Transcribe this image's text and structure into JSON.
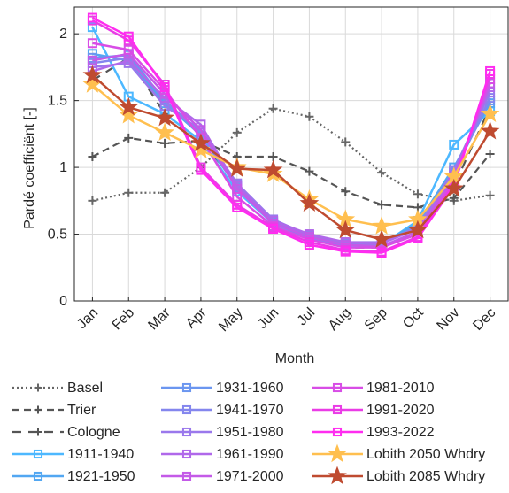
{
  "chart_data": {
    "type": "line",
    "xlabel": "Month",
    "ylabel": "Pardé coefficiënt [-]",
    "categories": [
      "Jan",
      "Feb",
      "Mar",
      "Apr",
      "May",
      "Jun",
      "Jul",
      "Aug",
      "Sep",
      "Oct",
      "Nov",
      "Dec"
    ],
    "ylim": [
      0,
      2.2
    ],
    "yticks": [
      "0",
      "0.5",
      "1",
      "1.5",
      "2"
    ],
    "grid": true,
    "legend_position": "bottom",
    "series": [
      {
        "name": "Basel",
        "color": "#666666",
        "dash": "dotted",
        "marker": "plus",
        "values": [
          0.75,
          0.81,
          0.81,
          1.0,
          1.26,
          1.44,
          1.38,
          1.19,
          0.96,
          0.8,
          0.75,
          0.79
        ]
      },
      {
        "name": "Trier",
        "color": "#555555",
        "dash": "dashed",
        "marker": "plus",
        "values": [
          1.08,
          1.22,
          1.18,
          1.2,
          1.08,
          1.08,
          0.97,
          0.82,
          0.72,
          0.7,
          0.77,
          1.1
        ]
      },
      {
        "name": "Cologne",
        "color": "#555555",
        "dash": "longdash",
        "marker": "plus",
        "values": [
          1.65,
          1.82,
          1.4,
          1.2,
          0.88,
          0.58,
          0.47,
          0.4,
          0.4,
          0.52,
          0.86,
          1.45
        ]
      },
      {
        "name": "1911-1940",
        "color": "#4db8ff",
        "dash": "solid",
        "marker": "square",
        "values": [
          2.05,
          1.53,
          1.4,
          1.2,
          0.82,
          0.58,
          0.46,
          0.41,
          0.42,
          0.6,
          1.17,
          1.42
        ]
      },
      {
        "name": "1921-1950",
        "color": "#52a7f2",
        "dash": "solid",
        "marker": "square",
        "values": [
          1.85,
          1.8,
          1.48,
          1.24,
          0.85,
          0.59,
          0.46,
          0.42,
          0.43,
          0.58,
          1.0,
          1.48
        ]
      },
      {
        "name": "1931-1960",
        "color": "#6b96f0",
        "dash": "solid",
        "marker": "square",
        "values": [
          1.82,
          1.84,
          1.5,
          1.24,
          0.86,
          0.59,
          0.47,
          0.42,
          0.43,
          0.56,
          0.97,
          1.5
        ]
      },
      {
        "name": "1941-1970",
        "color": "#8486ee",
        "dash": "solid",
        "marker": "square",
        "values": [
          1.78,
          1.82,
          1.5,
          1.26,
          0.87,
          0.6,
          0.48,
          0.43,
          0.43,
          0.55,
          0.96,
          1.52
        ]
      },
      {
        "name": "1951-1980",
        "color": "#9a78ec",
        "dash": "solid",
        "marker": "square",
        "values": [
          1.75,
          1.78,
          1.46,
          1.28,
          0.88,
          0.61,
          0.49,
          0.44,
          0.44,
          0.55,
          0.98,
          1.56
        ]
      },
      {
        "name": "1961-1990",
        "color": "#b068ea",
        "dash": "solid",
        "marker": "square",
        "values": [
          1.72,
          1.8,
          1.52,
          1.32,
          0.86,
          0.6,
          0.5,
          0.44,
          0.43,
          0.54,
          0.94,
          1.6
        ]
      },
      {
        "name": "1971-2000",
        "color": "#c45ae8",
        "dash": "solid",
        "marker": "square",
        "values": [
          1.8,
          1.85,
          1.55,
          1.28,
          0.84,
          0.58,
          0.48,
          0.42,
          0.41,
          0.52,
          0.92,
          1.63
        ]
      },
      {
        "name": "1981-2010",
        "color": "#d84de6",
        "dash": "solid",
        "marker": "square",
        "values": [
          1.93,
          1.88,
          1.58,
          1.22,
          0.78,
          0.56,
          0.46,
          0.4,
          0.4,
          0.5,
          0.9,
          1.66
        ]
      },
      {
        "name": "1991-2020",
        "color": "#ea3ce6",
        "dash": "solid",
        "marker": "square",
        "values": [
          2.1,
          1.95,
          1.62,
          1.0,
          0.72,
          0.55,
          0.44,
          0.38,
          0.37,
          0.48,
          0.88,
          1.7
        ]
      },
      {
        "name": "1993-2022",
        "color": "#ff2cf0",
        "dash": "solid",
        "marker": "square",
        "values": [
          2.12,
          1.98,
          1.6,
          0.98,
          0.7,
          0.54,
          0.42,
          0.37,
          0.36,
          0.47,
          0.86,
          1.72
        ]
      },
      {
        "name": "Lobith 2050 Whdry",
        "color": "#ffbf4f",
        "dash": "solid",
        "marker": "star",
        "values": [
          1.62,
          1.39,
          1.26,
          1.13,
          1.0,
          0.95,
          0.76,
          0.61,
          0.56,
          0.61,
          0.93,
          1.4
        ]
      },
      {
        "name": "Lobith 2085 Whdry",
        "color": "#bf4b30",
        "dash": "solid",
        "marker": "star",
        "values": [
          1.69,
          1.45,
          1.37,
          1.18,
          0.99,
          0.98,
          0.73,
          0.53,
          0.46,
          0.53,
          0.84,
          1.27
        ]
      }
    ]
  }
}
